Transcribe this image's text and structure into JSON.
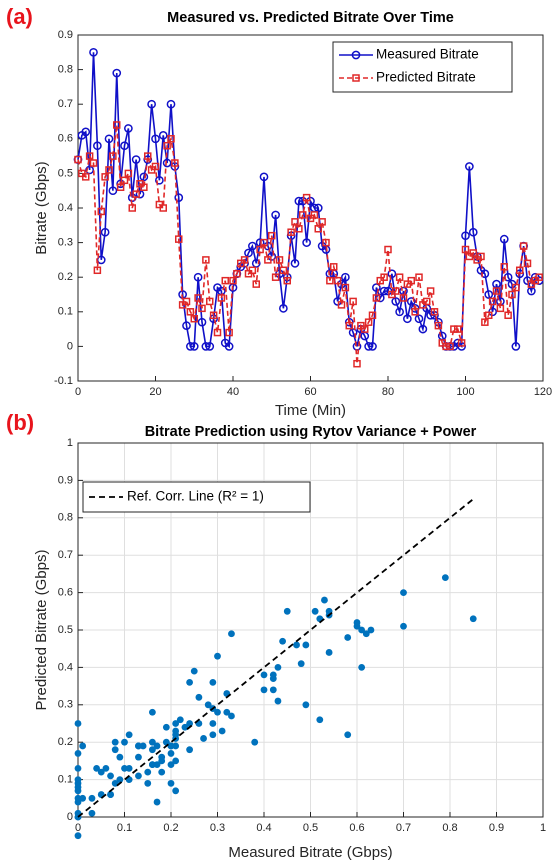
{
  "chart_data": [
    {
      "type": "line",
      "label": "(a)",
      "title": "Measured vs. Predicted Bitrate Over Time",
      "xlabel": "Time (Min)",
      "ylabel": "Bitrate (Gbps)",
      "xlim": [
        0,
        120
      ],
      "xticks": [
        0,
        20,
        40,
        60,
        80,
        100,
        120
      ],
      "ylim": [
        -0.1,
        0.9
      ],
      "yticks": [
        -0.1,
        0,
        0.1,
        0.2,
        0.3,
        0.4,
        0.5,
        0.6,
        0.7,
        0.8,
        0.9
      ],
      "grid": false,
      "legend": "upper right",
      "x": [
        0,
        1,
        2,
        3,
        4,
        5,
        6,
        7,
        8,
        9,
        10,
        11,
        12,
        13,
        14,
        15,
        16,
        17,
        18,
        19,
        20,
        21,
        22,
        23,
        24,
        25,
        26,
        27,
        28,
        29,
        30,
        31,
        32,
        33,
        34,
        35,
        36,
        37,
        38,
        39,
        40,
        41,
        42,
        43,
        44,
        45,
        46,
        47,
        48,
        49,
        50,
        51,
        52,
        53,
        54,
        55,
        56,
        57,
        58,
        59,
        60,
        61,
        62,
        63,
        64,
        65,
        66,
        67,
        68,
        69,
        70,
        71,
        72,
        73,
        74,
        75,
        76,
        77,
        78,
        79,
        80,
        81,
        82,
        83,
        84,
        85,
        86,
        87,
        88,
        89,
        90,
        91,
        92,
        93,
        94,
        95,
        96,
        97,
        98,
        99,
        100,
        101,
        102,
        103,
        104,
        105,
        106,
        107,
        108,
        109,
        110,
        111,
        112,
        113,
        114,
        115,
        116,
        117,
        118,
        119
      ],
      "series": [
        {
          "name": "Measured Bitrate",
          "color": "#1010c8",
          "marker": "circle",
          "dashed": false,
          "values": [
            0.54,
            0.61,
            0.62,
            0.51,
            0.85,
            0.58,
            0.25,
            0.33,
            0.6,
            0.45,
            0.79,
            0.47,
            0.58,
            0.63,
            0.43,
            0.54,
            0.44,
            0.49,
            0.54,
            0.7,
            0.6,
            0.48,
            0.61,
            0.53,
            0.7,
            0.52,
            0.43,
            0.15,
            0.06,
            0,
            0,
            0.2,
            0.07,
            0,
            0,
            0.08,
            0.17,
            0.16,
            0.01,
            0,
            0.17,
            0.21,
            0.23,
            0.24,
            0.27,
            0.29,
            0.24,
            0.3,
            0.49,
            0.29,
            0.26,
            0.38,
            0.21,
            0.11,
            0.2,
            0.32,
            0.24,
            0.42,
            0.42,
            0.3,
            0.42,
            0.4,
            0.4,
            0.29,
            0.28,
            0.21,
            0.21,
            0.13,
            0.18,
            0.2,
            0.07,
            0.04,
            0,
            0.05,
            0.03,
            0,
            0,
            0.17,
            0.14,
            0.16,
            0.16,
            0.21,
            0.13,
            0.1,
            0.16,
            0.08,
            0.13,
            0.11,
            0.08,
            0.05,
            0.11,
            0.09,
            0.09,
            0.07,
            0.03,
            0,
            0,
            0,
            0.01,
            0,
            0.32,
            0.52,
            0.33,
            0.26,
            0.22,
            0.21,
            0.15,
            0.1,
            0.18,
            0.13,
            0.31,
            0.2,
            0.18,
            0,
            0.21,
            0.29,
            0.19,
            0.16,
            0.2,
            0.19
          ]
        },
        {
          "name": "Predicted Bitrate",
          "color": "#e02828",
          "marker": "square",
          "dashed": true,
          "values": [
            0.54,
            0.5,
            0.49,
            0.55,
            0.53,
            0.22,
            0.39,
            0.49,
            0.51,
            0.55,
            0.64,
            0.46,
            0.48,
            0.5,
            0.4,
            0.44,
            0.47,
            0.46,
            0.55,
            0.51,
            0.52,
            0.41,
            0.4,
            0.58,
            0.6,
            0.53,
            0.31,
            0.12,
            0.13,
            0.1,
            0.08,
            0.14,
            0.11,
            0.25,
            0.13,
            0.09,
            0.04,
            0.14,
            0.19,
            0.04,
            0.19,
            0.21,
            0.24,
            0.25,
            0.21,
            0.22,
            0.18,
            0.28,
            0.3,
            0.25,
            0.32,
            0.2,
            0.25,
            0.22,
            0.19,
            0.33,
            0.36,
            0.34,
            0.38,
            0.43,
            0.37,
            0.38,
            0.34,
            0.36,
            0.3,
            0.19,
            0.23,
            0.19,
            0.12,
            0.17,
            0.06,
            0.13,
            -0.05,
            0.06,
            0.05,
            0.07,
            0.09,
            0.14,
            0.19,
            0.2,
            0.28,
            0.15,
            0.16,
            0.2,
            0.14,
            0.18,
            0.19,
            0.1,
            0.2,
            0.12,
            0.13,
            0.16,
            0.1,
            0.06,
            0.01,
            0,
            0,
            0.05,
            0.05,
            0.01,
            0.28,
            0.26,
            0.27,
            0.25,
            0.26,
            0.07,
            0.09,
            0.13,
            0.16,
            0.11,
            0.23,
            0.09,
            0.15,
            0.17,
            0.22,
            0.29,
            0.24,
            0.18,
            0.19,
            0.2
          ]
        }
      ]
    },
    {
      "type": "scatter",
      "label": "(b)",
      "title": "Bitrate Prediction using Rytov Variance + Power",
      "xlabel": "Measured Bitrate (Gbps)",
      "ylabel": "Predicted Bitrate (Gbps)",
      "xlim": [
        0,
        1
      ],
      "xticks": [
        0,
        0.1,
        0.2,
        0.3,
        0.4,
        0.5,
        0.6,
        0.7,
        0.8,
        0.9,
        1
      ],
      "ylim": [
        0,
        1
      ],
      "yticks": [
        0,
        0.1,
        0.2,
        0.3,
        0.4,
        0.5,
        0.6,
        0.7,
        0.8,
        0.9,
        1
      ],
      "grid": true,
      "legend": "upper left",
      "color": "#0072bd",
      "ref_line": {
        "name": "Ref. Corr. Line (R² = 1)",
        "color": "#000000",
        "x": [
          0,
          0.85
        ],
        "y": [
          0,
          0.85
        ]
      },
      "x": [
        0.54,
        0.61,
        0.62,
        0.51,
        0.85,
        0.58,
        0.25,
        0.33,
        0.6,
        0.45,
        0.79,
        0.47,
        0.58,
        0.63,
        0.43,
        0.54,
        0.44,
        0.49,
        0.54,
        0.7,
        0.6,
        0.48,
        0.61,
        0.53,
        0.7,
        0.52,
        0.43,
        0.15,
        0.06,
        0,
        0,
        0.2,
        0.07,
        0,
        0,
        0.08,
        0.17,
        0.16,
        0.01,
        0,
        0.17,
        0.21,
        0.23,
        0.24,
        0.27,
        0.29,
        0.24,
        0.3,
        0.49,
        0.29,
        0.26,
        0.38,
        0.21,
        0.11,
        0.2,
        0.32,
        0.24,
        0.42,
        0.42,
        0.3,
        0.42,
        0.4,
        0.4,
        0.29,
        0.28,
        0.21,
        0.21,
        0.13,
        0.18,
        0.2,
        0.07,
        0.04,
        0,
        0.05,
        0.03,
        0,
        0,
        0.17,
        0.14,
        0.16,
        0.16,
        0.21,
        0.13,
        0.1,
        0.16,
        0.08,
        0.13,
        0.11,
        0.08,
        0.05,
        0.11,
        0.09,
        0.09,
        0.07,
        0.03,
        0,
        0,
        0,
        0.01,
        0,
        0.32,
        0.52,
        0.33,
        0.26,
        0.22,
        0.21,
        0.15,
        0.1,
        0.18,
        0.13,
        0.31,
        0.2,
        0.18,
        0,
        0.21,
        0.29,
        0.19,
        0.16,
        0.2,
        0.19
      ],
      "y": [
        0.54,
        0.5,
        0.49,
        0.55,
        0.53,
        0.22,
        0.39,
        0.49,
        0.51,
        0.55,
        0.64,
        0.46,
        0.48,
        0.5,
        0.4,
        0.44,
        0.47,
        0.46,
        0.55,
        0.51,
        0.52,
        0.41,
        0.4,
        0.58,
        0.6,
        0.53,
        0.31,
        0.12,
        0.13,
        0.1,
        0.08,
        0.14,
        0.11,
        0.25,
        0.13,
        0.09,
        0.04,
        0.14,
        0.19,
        0.04,
        0.19,
        0.21,
        0.24,
        0.25,
        0.21,
        0.22,
        0.18,
        0.28,
        0.3,
        0.25,
        0.32,
        0.2,
        0.25,
        0.22,
        0.19,
        0.33,
        0.36,
        0.34,
        0.38,
        0.43,
        0.37,
        0.38,
        0.34,
        0.36,
        0.3,
        0.19,
        0.23,
        0.19,
        0.12,
        0.17,
        0.06,
        0.13,
        -0.05,
        0.06,
        0.05,
        0.07,
        0.09,
        0.14,
        0.19,
        0.2,
        0.28,
        0.15,
        0.16,
        0.2,
        0.14,
        0.18,
        0.19,
        0.1,
        0.2,
        0.12,
        0.13,
        0.16,
        0.1,
        0.06,
        0.01,
        0,
        0,
        0.05,
        0.05,
        0.01,
        0.28,
        0.26,
        0.27,
        0.25,
        0.26,
        0.07,
        0.09,
        0.13,
        0.16,
        0.11,
        0.23,
        0.09,
        0.15,
        0.17,
        0.22,
        0.29,
        0.24,
        0.18,
        0.19,
        0.2
      ]
    }
  ]
}
